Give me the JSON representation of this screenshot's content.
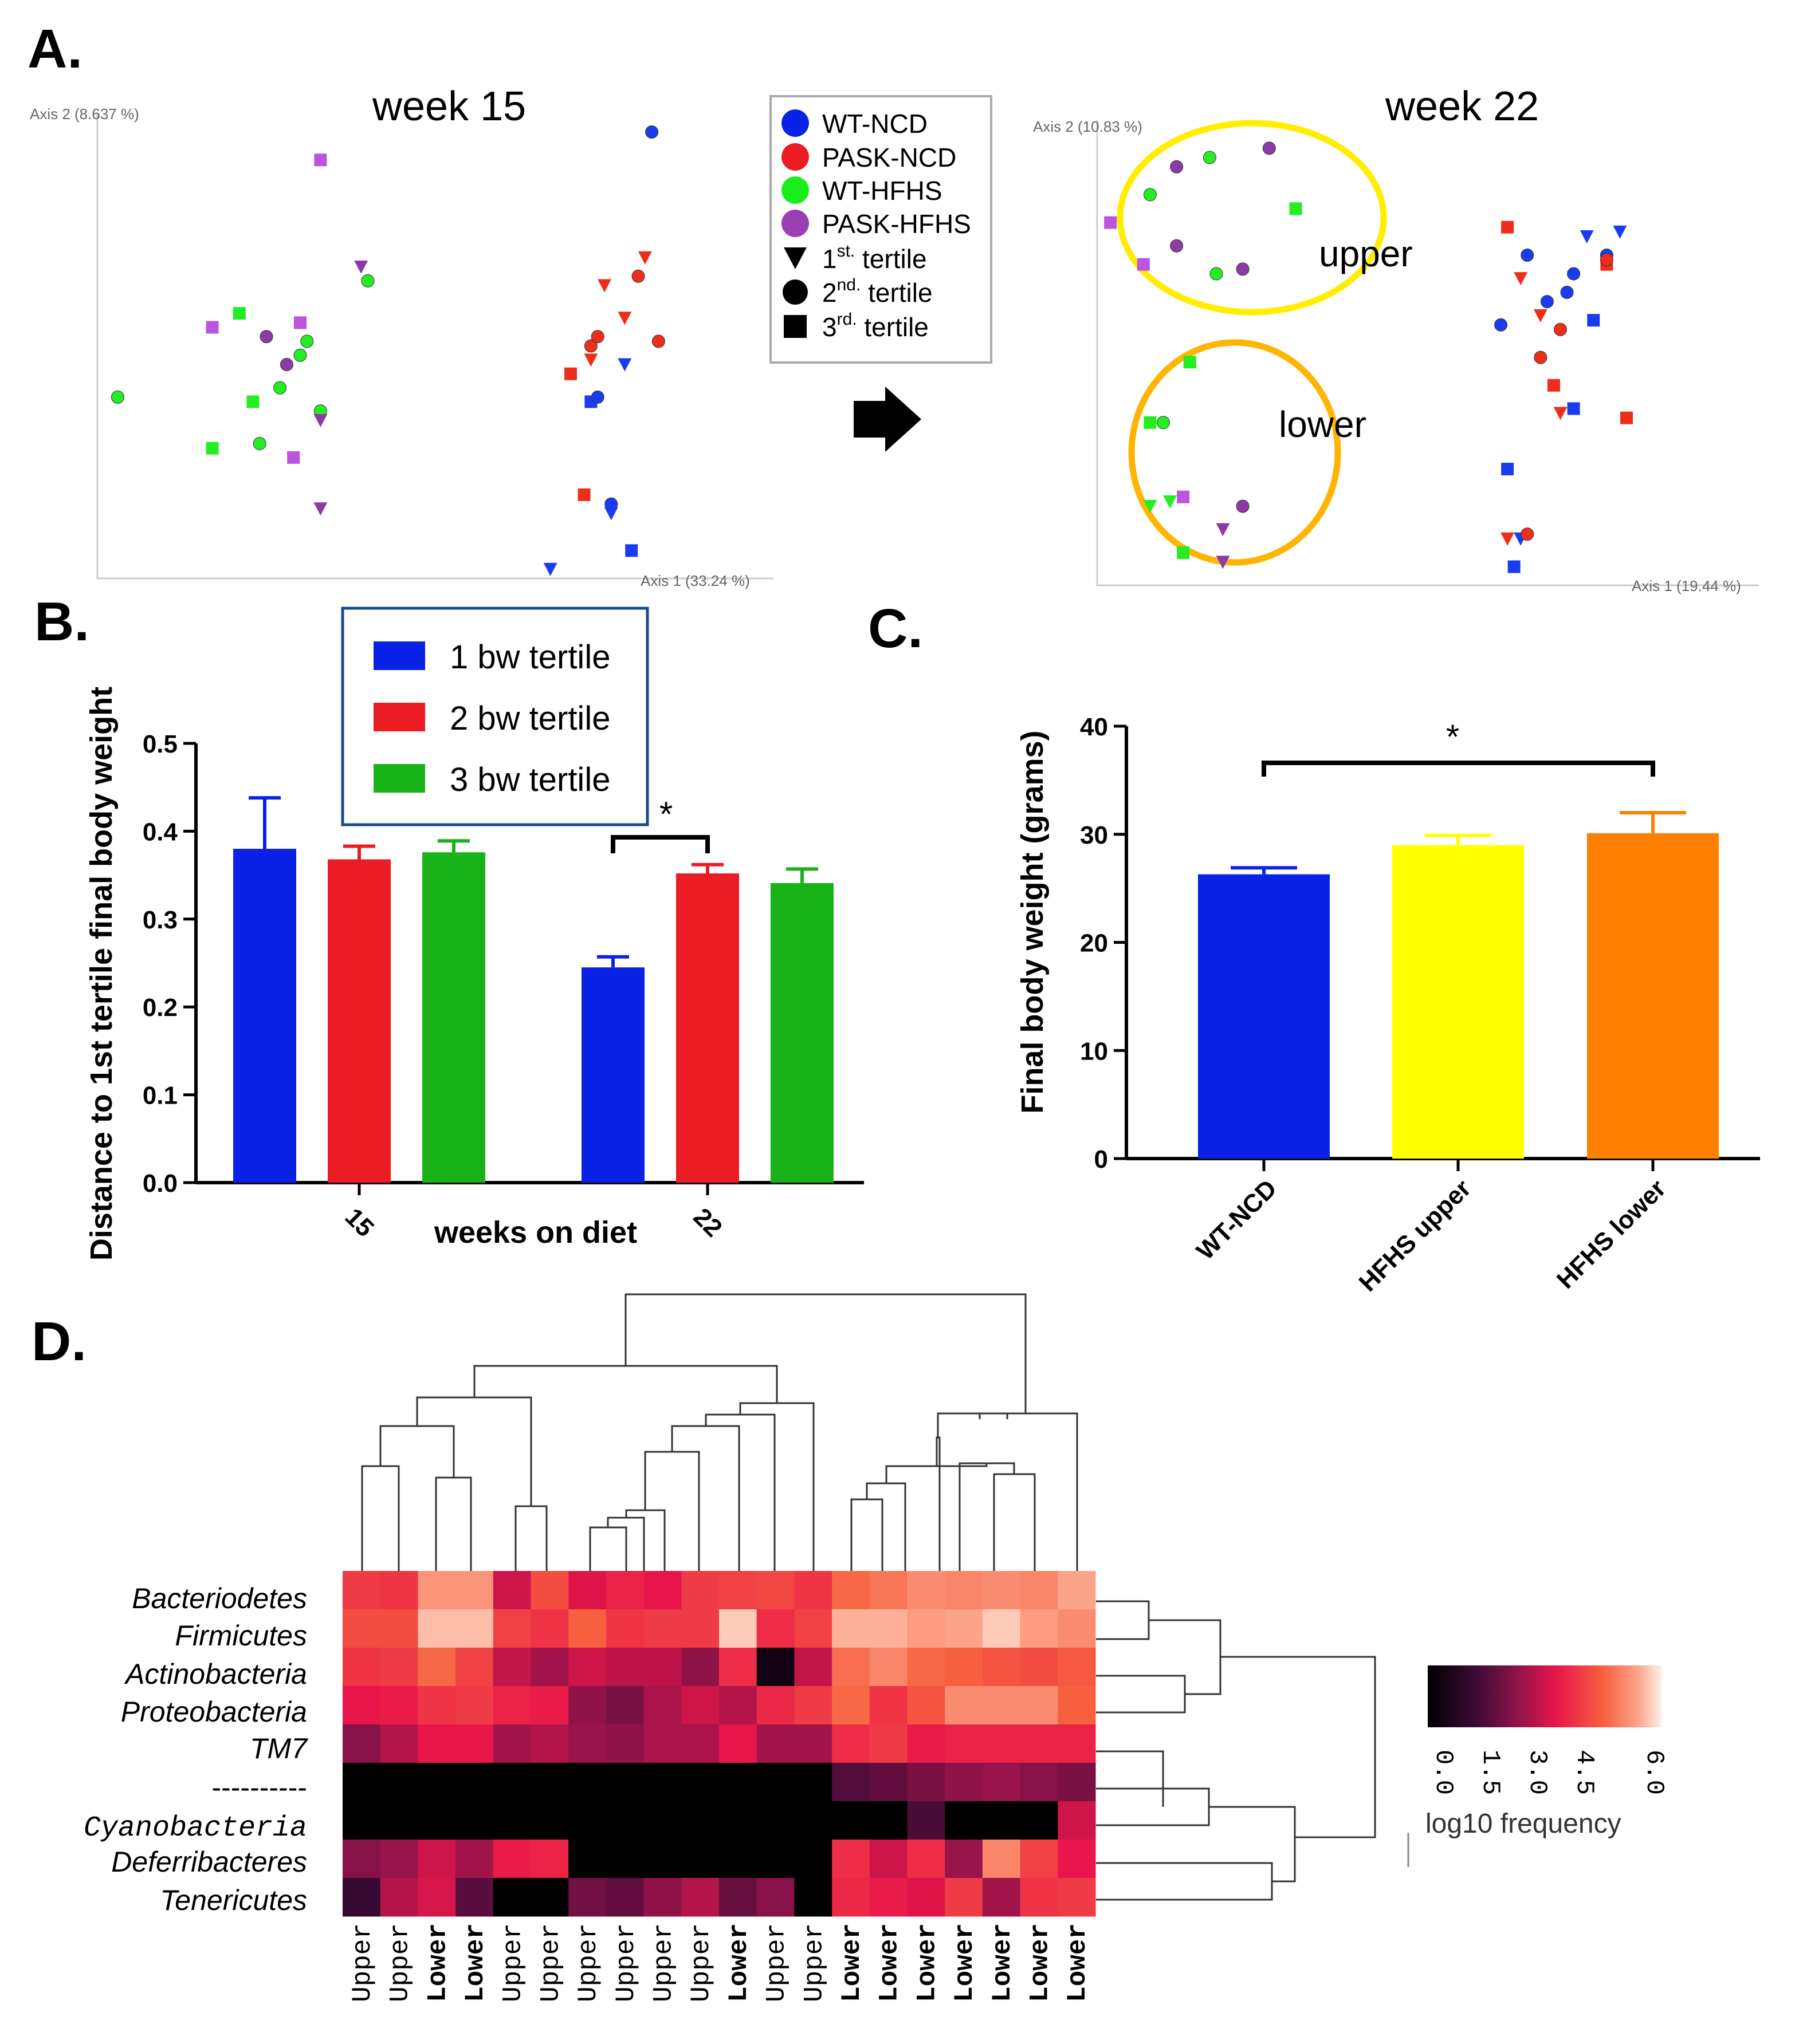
{
  "colors": {
    "WT-NCD": "#0a22e6",
    "PASK-NCD": "#ec1c24",
    "WT-HFHS": "#1aee1a",
    "PASK-HFHS": "#9b3fb5",
    "pcoa_blue": "#1a3cf0",
    "pcoa_red": "#ee2e1a",
    "pcoa_green": "#22ee22",
    "pcoa_purple": "#8e3aa6",
    "pcoa_lavender": "#bb55dd",
    "tertile1": "#0a22e6",
    "tertile2": "#ec1c24",
    "tertile3": "#19b219",
    "bar_blue": "#0a22e6",
    "bar_yellow": "#ffff00",
    "bar_orange": "#ff8000",
    "ellipse_upper": "#ffee00",
    "ellipse_lower": "#ffb400",
    "legend_box_border": "#1a4a8a"
  },
  "panelA": {
    "letter": "A.",
    "arrow_icon": "right-arrow-icon",
    "week15_title": "week 15",
    "week22_title": "week 22",
    "week15_xaxis": "Axis 1 (33.24 %)",
    "week15_yaxis": "Axis 2 (8.637 %)",
    "week22_xaxis": "Axis 1 (19.44 %)",
    "week22_yaxis": "Axis 2 (10.83 %)",
    "upper_label": "upper",
    "lower_label": "lower",
    "legend": [
      {
        "label": "WT-NCD",
        "shape": "circle",
        "color": "#0a22e6"
      },
      {
        "label": "PASK-NCD",
        "shape": "circle",
        "color": "#ec1c24"
      },
      {
        "label": "WT-HFHS",
        "shape": "circle",
        "color": "#1aee1a"
      },
      {
        "label": "PASK-HFHS",
        "shape": "circle",
        "color": "#9b3fb5"
      },
      {
        "label": "1",
        "sup": "st.",
        "label2": " tertile",
        "shape": "triangle",
        "color": "#000000"
      },
      {
        "label": "2",
        "sup": "nd.",
        "label2": " tertile",
        "shape": "circle",
        "color": "#000000"
      },
      {
        "label": "3",
        "sup": "rd.",
        "label2": " tertile",
        "shape": "square",
        "color": "#000000"
      }
    ]
  },
  "panelB": {
    "letter": "B.",
    "legend": [
      {
        "label": "1 bw tertile",
        "color": "#0a22e6"
      },
      {
        "label": "2 bw tertile",
        "color": "#ec1c24"
      },
      {
        "label": "3 bw tertile",
        "color": "#19b219"
      }
    ],
    "significance": "*",
    "yticks": [
      "0.0",
      "0.1",
      "0.2",
      "0.3",
      "0.4",
      "0.5"
    ],
    "xticks": [
      "15",
      "22"
    ]
  },
  "panelC": {
    "letter": "C.",
    "significance": "*",
    "yticks": [
      "0",
      "10",
      "20",
      "30",
      "40"
    ]
  },
  "panelD": {
    "letter": "D.",
    "colorbar_ticks": [
      "0.0",
      "1.5",
      "3.0",
      "4.5",
      "6.0"
    ],
    "colorbar_title": "log10 frequency"
  },
  "chart_data": [
    {
      "type": "scatter",
      "title": "week 15",
      "xlabel": "Axis 1 (33.24 %)",
      "ylabel": "Axis 2 (8.637 %)",
      "xlim": [
        0,
        100
      ],
      "ylim": [
        0,
        100
      ],
      "points": [
        {
          "x": 3,
          "y": 39,
          "group": "WT-HFHS",
          "tertile": 2
        },
        {
          "x": 17,
          "y": 28,
          "group": "WT-HFHS",
          "tertile": 3
        },
        {
          "x": 21,
          "y": 57,
          "group": "WT-HFHS",
          "tertile": 3
        },
        {
          "x": 23,
          "y": 38,
          "group": "WT-HFHS",
          "tertile": 3
        },
        {
          "x": 24,
          "y": 29,
          "group": "WT-HFHS",
          "tertile": 2
        },
        {
          "x": 27,
          "y": 41,
          "group": "WT-HFHS",
          "tertile": 2
        },
        {
          "x": 30,
          "y": 48,
          "group": "WT-HFHS",
          "tertile": 2
        },
        {
          "x": 31,
          "y": 51,
          "group": "WT-HFHS",
          "tertile": 2
        },
        {
          "x": 33,
          "y": 36,
          "group": "WT-HFHS",
          "tertile": 2
        },
        {
          "x": 40,
          "y": 64,
          "group": "WT-HFHS",
          "tertile": 2
        },
        {
          "x": 17,
          "y": 54,
          "group": "PASK-HFHS",
          "tertile": 3
        },
        {
          "x": 25,
          "y": 52,
          "group": "PASK-HFHS",
          "tertile": 2
        },
        {
          "x": 28,
          "y": 46,
          "group": "PASK-HFHS",
          "tertile": 2
        },
        {
          "x": 30,
          "y": 55,
          "group": "PASK-HFHS",
          "tertile": 3
        },
        {
          "x": 29,
          "y": 26,
          "group": "PASK-HFHS",
          "tertile": 3
        },
        {
          "x": 33,
          "y": 90,
          "group": "PASK-HFHS",
          "tertile": 3
        },
        {
          "x": 33,
          "y": 34,
          "group": "PASK-HFHS",
          "tertile": 1
        },
        {
          "x": 33,
          "y": 15,
          "group": "PASK-HFHS",
          "tertile": 1
        },
        {
          "x": 39,
          "y": 67,
          "group": "PASK-HFHS",
          "tertile": 1
        },
        {
          "x": 70,
          "y": 44,
          "group": "PASK-NCD",
          "tertile": 3
        },
        {
          "x": 73,
          "y": 47,
          "group": "PASK-NCD",
          "tertile": 1
        },
        {
          "x": 73,
          "y": 50,
          "group": "PASK-NCD",
          "tertile": 2
        },
        {
          "x": 74,
          "y": 52,
          "group": "PASK-NCD",
          "tertile": 2
        },
        {
          "x": 75,
          "y": 63,
          "group": "PASK-NCD",
          "tertile": 1
        },
        {
          "x": 78,
          "y": 56,
          "group": "PASK-NCD",
          "tertile": 1
        },
        {
          "x": 80,
          "y": 65,
          "group": "PASK-NCD",
          "tertile": 2
        },
        {
          "x": 81,
          "y": 69,
          "group": "PASK-NCD",
          "tertile": 1
        },
        {
          "x": 83,
          "y": 51,
          "group": "PASK-NCD",
          "tertile": 2
        },
        {
          "x": 72,
          "y": 18,
          "group": "PASK-NCD",
          "tertile": 3
        },
        {
          "x": 73,
          "y": 38,
          "group": "WT-NCD",
          "tertile": 3
        },
        {
          "x": 74,
          "y": 39,
          "group": "WT-NCD",
          "tertile": 2
        },
        {
          "x": 76,
          "y": 16,
          "group": "WT-NCD",
          "tertile": 2
        },
        {
          "x": 76,
          "y": 14,
          "group": "WT-NCD",
          "tertile": 1
        },
        {
          "x": 78,
          "y": 46,
          "group": "WT-NCD",
          "tertile": 1
        },
        {
          "x": 79,
          "y": 6,
          "group": "WT-NCD",
          "tertile": 3
        },
        {
          "x": 67,
          "y": 2,
          "group": "WT-NCD",
          "tertile": 1
        },
        {
          "x": 82,
          "y": 96,
          "group": "WT-NCD",
          "tertile": 2
        }
      ]
    },
    {
      "type": "scatter",
      "title": "week 22",
      "xlabel": "Axis 1 (19.44 %)",
      "ylabel": "Axis 2 (10.83 %)",
      "xlim": [
        0,
        100
      ],
      "ylim": [
        0,
        100
      ],
      "points": [
        {
          "x": 2,
          "y": 78,
          "group": "PASK-HFHS",
          "tertile": 3
        },
        {
          "x": 7,
          "y": 69,
          "group": "PASK-HFHS",
          "tertile": 3
        },
        {
          "x": 8,
          "y": 84,
          "group": "WT-HFHS",
          "tertile": 2
        },
        {
          "x": 12,
          "y": 90,
          "group": "PASK-HFHS",
          "tertile": 2
        },
        {
          "x": 12,
          "y": 73,
          "group": "PASK-HFHS",
          "tertile": 2
        },
        {
          "x": 17,
          "y": 92,
          "group": "WT-HFHS",
          "tertile": 2
        },
        {
          "x": 18,
          "y": 67,
          "group": "WT-HFHS",
          "tertile": 2
        },
        {
          "x": 22,
          "y": 68,
          "group": "PASK-HFHS",
          "tertile": 2
        },
        {
          "x": 26,
          "y": 94,
          "group": "PASK-HFHS",
          "tertile": 2
        },
        {
          "x": 30,
          "y": 81,
          "group": "WT-HFHS",
          "tertile": 3
        },
        {
          "x": 14,
          "y": 48,
          "group": "WT-HFHS",
          "tertile": 3
        },
        {
          "x": 8,
          "y": 35,
          "group": "WT-HFHS",
          "tertile": 3
        },
        {
          "x": 10,
          "y": 35,
          "group": "WT-HFHS",
          "tertile": 2
        },
        {
          "x": 8,
          "y": 17,
          "group": "WT-HFHS",
          "tertile": 1
        },
        {
          "x": 11,
          "y": 18,
          "group": "WT-HFHS",
          "tertile": 1
        },
        {
          "x": 13,
          "y": 19,
          "group": "PASK-HFHS",
          "tertile": 3
        },
        {
          "x": 22,
          "y": 17,
          "group": "PASK-HFHS",
          "tertile": 2
        },
        {
          "x": 19,
          "y": 12,
          "group": "PASK-HFHS",
          "tertile": 1
        },
        {
          "x": 13,
          "y": 7,
          "group": "WT-HFHS",
          "tertile": 3
        },
        {
          "x": 19,
          "y": 5,
          "group": "PASK-HFHS",
          "tertile": 1
        },
        {
          "x": 62,
          "y": 77,
          "group": "PASK-NCD",
          "tertile": 3
        },
        {
          "x": 64,
          "y": 66,
          "group": "PASK-NCD",
          "tertile": 1
        },
        {
          "x": 65,
          "y": 71,
          "group": "WT-NCD",
          "tertile": 2
        },
        {
          "x": 61,
          "y": 56,
          "group": "WT-NCD",
          "tertile": 2
        },
        {
          "x": 67,
          "y": 58,
          "group": "PASK-NCD",
          "tertile": 1
        },
        {
          "x": 67,
          "y": 49,
          "group": "PASK-NCD",
          "tertile": 2
        },
        {
          "x": 68,
          "y": 61,
          "group": "WT-NCD",
          "tertile": 2
        },
        {
          "x": 70,
          "y": 55,
          "group": "PASK-NCD",
          "tertile": 2
        },
        {
          "x": 69,
          "y": 43,
          "group": "PASK-NCD",
          "tertile": 3
        },
        {
          "x": 70,
          "y": 37,
          "group": "PASK-NCD",
          "tertile": 1
        },
        {
          "x": 71,
          "y": 63,
          "group": "WT-NCD",
          "tertile": 2
        },
        {
          "x": 72,
          "y": 67,
          "group": "WT-NCD",
          "tertile": 2
        },
        {
          "x": 74,
          "y": 75,
          "group": "WT-NCD",
          "tertile": 1
        },
        {
          "x": 75,
          "y": 57,
          "group": "WT-NCD",
          "tertile": 3
        },
        {
          "x": 72,
          "y": 38,
          "group": "WT-NCD",
          "tertile": 3
        },
        {
          "x": 77,
          "y": 69,
          "group": "PASK-NCD",
          "tertile": 3
        },
        {
          "x": 77,
          "y": 71,
          "group": "WT-NCD",
          "tertile": 2
        },
        {
          "x": 77,
          "y": 70,
          "group": "PASK-NCD",
          "tertile": 2
        },
        {
          "x": 79,
          "y": 76,
          "group": "WT-NCD",
          "tertile": 1
        },
        {
          "x": 80,
          "y": 36,
          "group": "PASK-NCD",
          "tertile": 3
        },
        {
          "x": 62,
          "y": 25,
          "group": "WT-NCD",
          "tertile": 3
        },
        {
          "x": 62,
          "y": 10,
          "group": "PASK-NCD",
          "tertile": 1
        },
        {
          "x": 64,
          "y": 10,
          "group": "WT-NCD",
          "tertile": 1
        },
        {
          "x": 65,
          "y": 11,
          "group": "PASK-NCD",
          "tertile": 2
        },
        {
          "x": 63,
          "y": 4,
          "group": "WT-NCD",
          "tertile": 3
        }
      ]
    },
    {
      "type": "bar",
      "title": "",
      "xlabel": "weeks on diet",
      "ylabel": "Distance to 1st tertile final body weight",
      "ylim": [
        0,
        0.5
      ],
      "categories": [
        "15",
        "22"
      ],
      "series": [
        {
          "name": "1 bw tertile",
          "values": [
            0.38,
            0.245
          ],
          "errors": [
            0.058,
            0.012
          ]
        },
        {
          "name": "2 bw tertile",
          "values": [
            0.368,
            0.352
          ],
          "errors": [
            0.015,
            0.01
          ]
        },
        {
          "name": "3 bw tertile",
          "values": [
            0.376,
            0.341
          ],
          "errors": [
            0.013,
            0.016
          ]
        }
      ],
      "significance": {
        "category": "22",
        "between": [
          "1 bw tertile",
          "2 bw tertile"
        ],
        "label": "*"
      }
    },
    {
      "type": "bar",
      "title": "",
      "xlabel": "",
      "ylabel": "Final body weight (grams)",
      "ylim": [
        0,
        40
      ],
      "categories": [
        "WT-NCD",
        "HFHS upper",
        "HFHS lower"
      ],
      "values": [
        26.3,
        29.0,
        30.1
      ],
      "errors": [
        0.6,
        0.9,
        1.9
      ],
      "significance": {
        "between": [
          "WT-NCD",
          "HFHS lower"
        ],
        "label": "*"
      }
    },
    {
      "type": "heatmap",
      "title": "",
      "colorbar_label": "log10 frequency",
      "value_range": [
        0,
        6
      ],
      "rows": [
        "Bacteriodetes",
        "Firmicutes",
        "Actinobacteria",
        "Proteobacteria",
        "TM7",
        "----------",
        "Cyanobacteria",
        "Deferribacteres",
        "Tenericutes"
      ],
      "columns": [
        "Upper",
        "Upper",
        "Lower",
        "Lower",
        "Upper",
        "Upper",
        "Upper",
        "Upper",
        "Upper",
        "Upper",
        "Lower",
        "Upper",
        "Upper",
        "Lower",
        "Lower",
        "Lower",
        "Lower",
        "Lower",
        "Lower",
        "Lower"
      ],
      "values": [
        [
          3.9,
          3.8,
          5.2,
          5.2,
          3.0,
          4.2,
          3.2,
          3.5,
          3.3,
          3.9,
          4.0,
          4.1,
          3.8,
          4.6,
          4.8,
          5.1,
          5.0,
          5.1,
          5.0,
          5.4
        ],
        [
          4.2,
          4.2,
          5.6,
          5.6,
          4.0,
          3.8,
          4.5,
          3.8,
          3.9,
          3.9,
          5.7,
          3.7,
          4.0,
          5.5,
          5.5,
          5.3,
          5.4,
          5.7,
          5.3,
          5.1
        ],
        [
          3.8,
          3.9,
          4.6,
          4.0,
          2.9,
          2.5,
          3.0,
          2.8,
          2.8,
          2.3,
          3.7,
          0.4,
          2.9,
          4.7,
          5.0,
          4.6,
          4.5,
          4.3,
          4.2,
          4.4
        ],
        [
          3.3,
          3.4,
          3.8,
          3.9,
          3.5,
          3.4,
          2.3,
          2.0,
          2.6,
          3.0,
          2.7,
          3.6,
          3.9,
          4.6,
          3.8,
          4.3,
          5.1,
          5.1,
          5.1,
          4.5
        ],
        [
          2.2,
          2.7,
          3.3,
          3.3,
          2.5,
          2.7,
          2.4,
          2.3,
          2.6,
          2.6,
          3.3,
          2.5,
          2.5,
          3.7,
          3.9,
          3.4,
          3.5,
          3.5,
          3.5,
          3.5
        ],
        [
          0.0,
          0.0,
          0.0,
          0.0,
          0.0,
          0.0,
          0.0,
          0.0,
          0.0,
          0.0,
          0.0,
          0.0,
          0.0,
          1.5,
          1.7,
          2.0,
          2.3,
          2.4,
          2.2,
          2.0
        ],
        [
          0.0,
          0.0,
          0.0,
          0.0,
          0.0,
          0.0,
          0.0,
          0.0,
          0.0,
          0.0,
          0.0,
          0.0,
          0.0,
          0.0,
          0.0,
          1.4,
          0.0,
          0.0,
          0.0,
          3.0
        ],
        [
          2.2,
          2.4,
          3.0,
          2.5,
          3.4,
          3.5,
          0.0,
          0.0,
          0.0,
          0.0,
          0.0,
          0.0,
          0.0,
          3.7,
          3.0,
          3.7,
          2.4,
          5.0,
          4.0,
          3.3
        ],
        [
          1.1,
          2.7,
          3.1,
          1.6,
          0.0,
          0.0,
          1.9,
          1.7,
          2.3,
          2.7,
          1.8,
          2.2,
          0.0,
          3.6,
          3.4,
          3.2,
          3.9,
          2.5,
          3.8,
          3.9
        ]
      ]
    }
  ]
}
